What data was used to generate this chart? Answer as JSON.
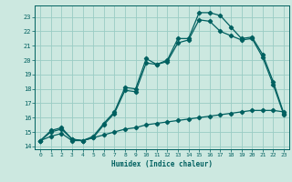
{
  "xlabel": "Humidex (Indice chaleur)",
  "bg_color": "#cce8e0",
  "line_color": "#006060",
  "grid_color": "#99ccc4",
  "ylim": [
    13.8,
    23.8
  ],
  "xlim": [
    -0.5,
    23.5
  ],
  "yticks": [
    14,
    15,
    16,
    17,
    18,
    19,
    20,
    21,
    22,
    23
  ],
  "xticks": [
    0,
    1,
    2,
    3,
    4,
    5,
    6,
    7,
    8,
    9,
    10,
    11,
    12,
    13,
    14,
    15,
    16,
    17,
    18,
    19,
    20,
    21,
    22,
    23
  ],
  "line1_x": [
    0,
    1,
    2,
    3,
    4,
    5,
    6,
    7,
    8,
    9,
    10,
    11,
    12,
    13,
    14,
    15,
    16,
    17,
    18,
    19,
    20,
    21,
    22,
    23
  ],
  "line1_y": [
    14.4,
    15.1,
    15.3,
    14.5,
    14.4,
    14.7,
    15.6,
    16.4,
    18.1,
    18.0,
    20.1,
    19.7,
    20.0,
    21.5,
    21.5,
    23.3,
    23.3,
    23.1,
    22.3,
    21.5,
    21.6,
    20.4,
    18.5,
    16.3
  ],
  "line2_x": [
    0,
    1,
    2,
    3,
    4,
    5,
    6,
    7,
    8,
    9,
    10,
    11,
    12,
    13,
    14,
    15,
    16,
    17,
    18,
    19,
    20,
    21,
    22,
    23
  ],
  "line2_y": [
    14.4,
    15.0,
    15.2,
    14.5,
    14.4,
    14.6,
    15.5,
    16.3,
    17.9,
    17.8,
    19.8,
    19.7,
    19.9,
    21.2,
    21.4,
    22.8,
    22.7,
    22.0,
    21.7,
    21.4,
    21.5,
    20.2,
    18.3,
    16.2
  ],
  "line3_x": [
    0,
    1,
    2,
    3,
    4,
    5,
    6,
    7,
    8,
    9,
    10,
    11,
    12,
    13,
    14,
    15,
    16,
    17,
    18,
    19,
    20,
    21,
    22,
    23
  ],
  "line3_y": [
    14.4,
    14.7,
    14.9,
    14.4,
    14.4,
    14.6,
    14.8,
    15.0,
    15.2,
    15.3,
    15.5,
    15.6,
    15.7,
    15.8,
    15.9,
    16.0,
    16.1,
    16.2,
    16.3,
    16.4,
    16.5,
    16.5,
    16.5,
    16.4
  ]
}
